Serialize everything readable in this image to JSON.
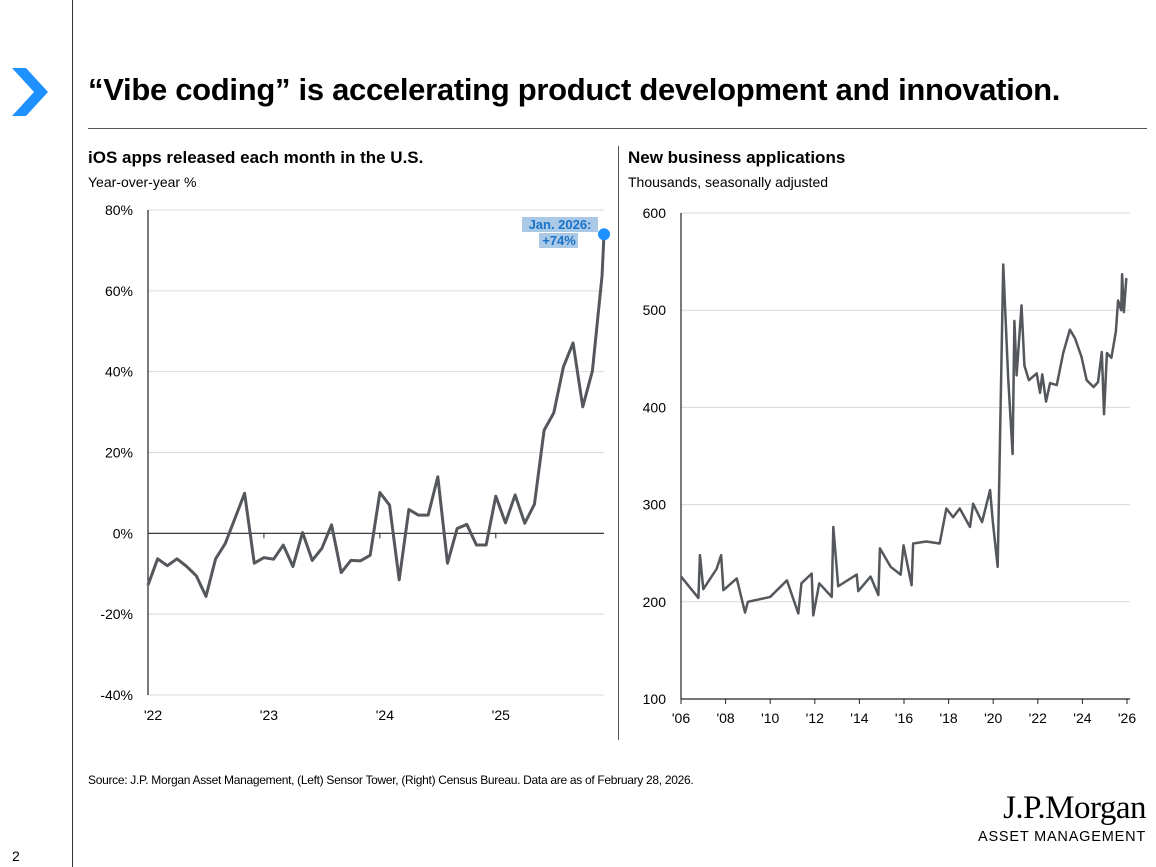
{
  "title": "“Vibe coding” is accelerating product development and innovation.",
  "source": "Source: J.P. Morgan Asset Management, (Left) Sensor Tower, (Right) Census Bureau. Data are as of February 28, 2026.",
  "logo": {
    "name": "J.P.Morgan",
    "sub": "ASSET MANAGEMENT"
  },
  "page_number": "2",
  "colors": {
    "accent": "#1e90ff",
    "line": "#54575b",
    "grid": "#d9d9d9",
    "annotation_bg": "#a9c9e6",
    "annotation_text": "#1a73c8"
  },
  "chart_data": [
    {
      "type": "line",
      "title": "iOS apps released each month in the U.S.",
      "subtitle": "Year-over-year %",
      "ylim": [
        -40,
        80
      ],
      "yticks": [
        -40,
        -20,
        0,
        20,
        40,
        60,
        80
      ],
      "ytick_labels": [
        "-40%",
        "-20%",
        "0%",
        "20%",
        "40%",
        "60%",
        "80%"
      ],
      "xtick_labels": [
        "'22",
        "'23",
        "'24",
        "'25"
      ],
      "xtick_positions": [
        0,
        12,
        24,
        36
      ],
      "xlim": [
        0,
        47.2
      ],
      "grid": true,
      "annotation": {
        "line1": "Jan. 2026:",
        "line2": "+74%",
        "value": 74
      },
      "x": [
        0,
        1,
        2,
        3,
        4,
        5,
        6,
        7,
        8,
        9,
        10,
        11,
        12,
        13,
        14,
        15,
        16,
        17,
        18,
        19,
        20,
        21,
        22,
        23,
        24,
        25,
        26,
        27,
        28,
        29,
        30,
        31,
        32,
        33,
        34,
        35,
        36,
        37,
        38,
        39,
        40,
        41,
        42,
        43,
        44,
        45,
        46,
        47,
        47.2
      ],
      "values": [
        -12.8,
        -6.3,
        -8,
        -6.3,
        -8.2,
        -10.5,
        -15.6,
        -6.3,
        -2.5,
        3.7,
        9.9,
        -7.4,
        -6,
        -6.4,
        -2.9,
        -8.2,
        0.2,
        -6.7,
        -3.7,
        2.1,
        -9.7,
        -6.7,
        -6.8,
        -5.4,
        10.1,
        7,
        -11.5,
        5.9,
        4.5,
        4.5,
        14,
        -7.4,
        1.2,
        2.2,
        -2.9,
        -2.9,
        9.2,
        2.6,
        9.5,
        2.5,
        7.2,
        25.5,
        29.8,
        41.2,
        47.1,
        31.3,
        40.2,
        63.8,
        74
      ]
    },
    {
      "type": "line",
      "title": "New business applications",
      "subtitle": "Thousands, seasonally adjusted",
      "ylim": [
        100,
        600
      ],
      "yticks": [
        100,
        200,
        300,
        400,
        500,
        600
      ],
      "ytick_labels": [
        "100",
        "200",
        "300",
        "400",
        "500",
        "600"
      ],
      "xlim": [
        2006,
        2026
      ],
      "xticks": [
        2006,
        2008,
        2010,
        2012,
        2014,
        2016,
        2018,
        2020,
        2022,
        2024,
        2026
      ],
      "xtick_labels": [
        "'06",
        "'08",
        "'10",
        "'12",
        "'14",
        "'16",
        "'18",
        "'20",
        "'22",
        "'24",
        "'26"
      ],
      "grid": true,
      "x": [
        2006.0,
        2006.78,
        2006.85,
        2007.0,
        2007.6,
        2007.8,
        2007.9,
        2008.5,
        2008.87,
        2009.0,
        2010.0,
        2010.75,
        2011.26,
        2011.4,
        2011.86,
        2011.93,
        2012.2,
        2012.76,
        2012.83,
        2013.05,
        2013.88,
        2013.95,
        2014.5,
        2014.85,
        2014.92,
        2015.4,
        2015.85,
        2015.98,
        2016.34,
        2016.41,
        2017.0,
        2017.6,
        2017.9,
        2018.2,
        2018.5,
        2018.96,
        2019.1,
        2019.5,
        2019.86,
        2019.98,
        2020.2,
        2020.45,
        2020.67,
        2020.87,
        2020.95,
        2021.05,
        2021.27,
        2021.4,
        2021.6,
        2021.95,
        2022.1,
        2022.2,
        2022.37,
        2022.55,
        2022.85,
        2023.14,
        2023.44,
        2023.67,
        2023.96,
        2024.19,
        2024.5,
        2024.7,
        2024.87,
        2024.97,
        2025.1,
        2025.3,
        2025.5,
        2025.6,
        2025.74,
        2025.78,
        2025.86,
        2025.97
      ],
      "values": [
        226,
        204,
        248,
        213,
        234,
        248,
        212,
        224,
        189,
        200,
        205,
        222,
        188,
        219,
        229,
        186,
        219,
        205,
        277,
        216,
        228,
        211,
        226,
        207,
        255,
        236,
        228,
        258,
        217,
        260,
        262,
        260,
        296,
        287,
        296,
        277,
        301,
        282,
        315,
        283,
        236,
        547,
        431,
        352,
        489,
        433,
        505,
        443,
        428,
        435,
        415,
        434,
        406,
        425,
        423,
        456,
        480,
        471,
        452,
        428,
        421,
        426,
        457,
        393,
        456,
        451,
        478,
        510,
        500,
        537,
        498,
        533
      ]
    }
  ]
}
